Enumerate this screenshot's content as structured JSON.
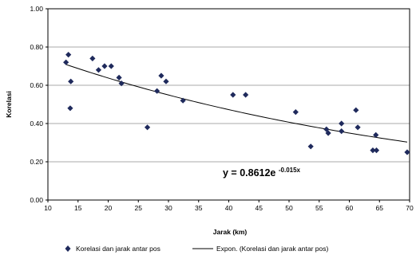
{
  "chart_data": {
    "type": "scatter",
    "xlabel": "Jarak (km)",
    "ylabel": "Korelasi",
    "xlim": [
      10,
      70
    ],
    "ylim": [
      0,
      1
    ],
    "x_ticks": [
      "10",
      "15",
      "20",
      "25",
      "30",
      "35",
      "40",
      "45",
      "50",
      "55",
      "60",
      "65",
      "70"
    ],
    "y_ticks": [
      "0.00",
      "0.20",
      "0.40",
      "0.60",
      "0.80",
      "1.00"
    ],
    "grid": "horizontal",
    "legend_position": "bottom",
    "series": [
      {
        "name": "Korelasi dan jarak antar pos",
        "marker": "diamond",
        "color": "#1f2a5c",
        "points": [
          [
            13.0,
            0.72
          ],
          [
            13.4,
            0.76
          ],
          [
            13.8,
            0.62
          ],
          [
            13.7,
            0.48
          ],
          [
            17.4,
            0.74
          ],
          [
            18.4,
            0.68
          ],
          [
            19.4,
            0.7
          ],
          [
            20.5,
            0.7
          ],
          [
            21.8,
            0.64
          ],
          [
            22.2,
            0.61
          ],
          [
            26.5,
            0.38
          ],
          [
            28.1,
            0.57
          ],
          [
            28.8,
            0.65
          ],
          [
            29.6,
            0.62
          ],
          [
            32.4,
            0.52
          ],
          [
            40.7,
            0.55
          ],
          [
            42.8,
            0.55
          ],
          [
            51.1,
            0.46
          ],
          [
            53.6,
            0.28
          ],
          [
            56.2,
            0.37
          ],
          [
            56.5,
            0.35
          ],
          [
            58.7,
            0.4
          ],
          [
            58.7,
            0.36
          ],
          [
            61.1,
            0.47
          ],
          [
            61.4,
            0.38
          ],
          [
            63.9,
            0.26
          ],
          [
            64.4,
            0.34
          ],
          [
            64.5,
            0.26
          ],
          [
            69.6,
            0.25
          ]
        ]
      },
      {
        "name": "Expon. (Korelasi dan jarak antar pos)",
        "type": "trendline",
        "color": "#000000",
        "model": {
          "a": 0.8612,
          "b": -0.015
        },
        "x_range": [
          13,
          69.6
        ]
      }
    ],
    "annotation": {
      "text_main": "y = 0.8612e",
      "text_sup": "-0.015x"
    }
  }
}
